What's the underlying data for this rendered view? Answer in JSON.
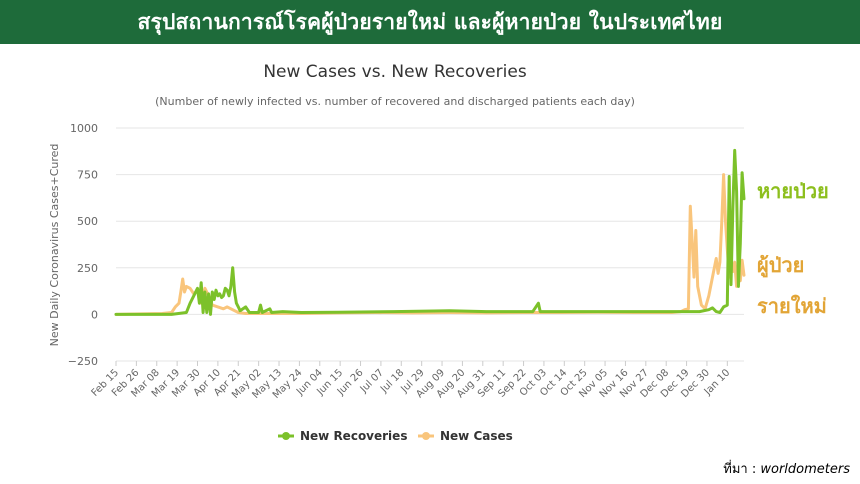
{
  "banner": {
    "title": "สรุปสถานการณ์โรคผู้ป่วยรายใหม่ และผู้หายป่วย ในประเทศไทย"
  },
  "side_labels": {
    "recoveries": "หายป่วย",
    "cases_line1": "ผู้ป่วย",
    "cases_line2": "รายใหม่"
  },
  "source": {
    "prefix": "ที่มา : ",
    "name": "worldometers"
  },
  "colors": {
    "banner": "#1e6b3a",
    "recoveries": "#7cc12a",
    "cases": "#f9c57c",
    "grid": "#e6e6e6"
  },
  "chart_data": {
    "type": "line",
    "title": "New Cases vs. New Recoveries",
    "subtitle": "(Number of newly infected vs. number of recovered and discharged patients each day)",
    "ylabel": "New Daily Coronavirus Cases+Cured",
    "xlabel": "",
    "ylim": [
      -250,
      1000
    ],
    "yticks": [
      -250,
      0,
      250,
      500,
      750,
      1000
    ],
    "grid": true,
    "legend": "bottom",
    "x_ticks": [
      "Feb 15",
      "Feb 26",
      "Mar 08",
      "Mar 19",
      "Mar 30",
      "Apr 10",
      "Apr 21",
      "May 02",
      "May 13",
      "May 24",
      "Jun 04",
      "Jun 15",
      "Jun 26",
      "Jul 07",
      "Jul 18",
      "Jul 29",
      "Aug 09",
      "Aug 20",
      "Aug 31",
      "Sep 11",
      "Sep 22",
      "Oct 03",
      "Oct 14",
      "Oct 25",
      "Nov 05",
      "Nov 16",
      "Nov 27",
      "Dec 08",
      "Dec 19",
      "Dec 30",
      "Jan 10"
    ],
    "x_start": "Feb 15",
    "series": [
      {
        "name": "New Recoveries",
        "points": [
          [
            0,
            0
          ],
          [
            30,
            0
          ],
          [
            38,
            10
          ],
          [
            40,
            60
          ],
          [
            42,
            100
          ],
          [
            44,
            140
          ],
          [
            45,
            60
          ],
          [
            46,
            170
          ],
          [
            47,
            10
          ],
          [
            48,
            120
          ],
          [
            49,
            10
          ],
          [
            50,
            110
          ],
          [
            51,
            0
          ],
          [
            52,
            120
          ],
          [
            53,
            80
          ],
          [
            54,
            130
          ],
          [
            55,
            100
          ],
          [
            56,
            110
          ],
          [
            57,
            90
          ],
          [
            58,
            100
          ],
          [
            59,
            140
          ],
          [
            60,
            130
          ],
          [
            61,
            100
          ],
          [
            62,
            150
          ],
          [
            63,
            250
          ],
          [
            64,
            120
          ],
          [
            65,
            60
          ],
          [
            66,
            40
          ],
          [
            67,
            20
          ],
          [
            70,
            40
          ],
          [
            72,
            10
          ],
          [
            77,
            10
          ],
          [
            78,
            50
          ],
          [
            79,
            10
          ],
          [
            83,
            30
          ],
          [
            84,
            10
          ],
          [
            90,
            15
          ],
          [
            100,
            10
          ],
          [
            120,
            12
          ],
          [
            150,
            15
          ],
          [
            180,
            20
          ],
          [
            200,
            15
          ],
          [
            225,
            15
          ],
          [
            228,
            60
          ],
          [
            229,
            15
          ],
          [
            250,
            15
          ],
          [
            270,
            15
          ],
          [
            285,
            15
          ],
          [
            300,
            15
          ],
          [
            315,
            15
          ],
          [
            320,
            25
          ],
          [
            322,
            35
          ],
          [
            324,
            15
          ],
          [
            326,
            10
          ],
          [
            328,
            40
          ],
          [
            330,
            50
          ],
          [
            331,
            740
          ],
          [
            332,
            160
          ],
          [
            333,
            580
          ],
          [
            334,
            880
          ],
          [
            335,
            660
          ],
          [
            336,
            150
          ],
          [
            337,
            380
          ],
          [
            338,
            760
          ],
          [
            339,
            620
          ]
        ]
      },
      {
        "name": "New Cases",
        "points": [
          [
            0,
            0
          ],
          [
            25,
            5
          ],
          [
            30,
            10
          ],
          [
            32,
            40
          ],
          [
            34,
            60
          ],
          [
            35,
            120
          ],
          [
            36,
            190
          ],
          [
            37,
            120
          ],
          [
            38,
            150
          ],
          [
            40,
            140
          ],
          [
            42,
            110
          ],
          [
            44,
            130
          ],
          [
            46,
            60
          ],
          [
            48,
            140
          ],
          [
            50,
            100
          ],
          [
            52,
            50
          ],
          [
            55,
            40
          ],
          [
            58,
            30
          ],
          [
            60,
            40
          ],
          [
            62,
            30
          ],
          [
            64,
            20
          ],
          [
            66,
            10
          ],
          [
            70,
            5
          ],
          [
            80,
            5
          ],
          [
            100,
            5
          ],
          [
            120,
            8
          ],
          [
            140,
            10
          ],
          [
            160,
            8
          ],
          [
            180,
            10
          ],
          [
            200,
            8
          ],
          [
            220,
            10
          ],
          [
            240,
            10
          ],
          [
            260,
            12
          ],
          [
            280,
            10
          ],
          [
            300,
            10
          ],
          [
            305,
            15
          ],
          [
            307,
            25
          ],
          [
            309,
            30
          ],
          [
            310,
            580
          ],
          [
            311,
            400
          ],
          [
            312,
            200
          ],
          [
            313,
            450
          ],
          [
            314,
            150
          ],
          [
            316,
            50
          ],
          [
            318,
            30
          ],
          [
            320,
            100
          ],
          [
            322,
            200
          ],
          [
            324,
            300
          ],
          [
            325,
            220
          ],
          [
            326,
            280
          ],
          [
            327,
            500
          ],
          [
            328,
            750
          ],
          [
            329,
            500
          ],
          [
            330,
            350
          ],
          [
            331,
            200
          ],
          [
            332,
            250
          ],
          [
            333,
            230
          ],
          [
            334,
            280
          ],
          [
            335,
            150
          ],
          [
            336,
            250
          ],
          [
            337,
            180
          ],
          [
            338,
            290
          ],
          [
            339,
            210
          ]
        ]
      }
    ]
  }
}
